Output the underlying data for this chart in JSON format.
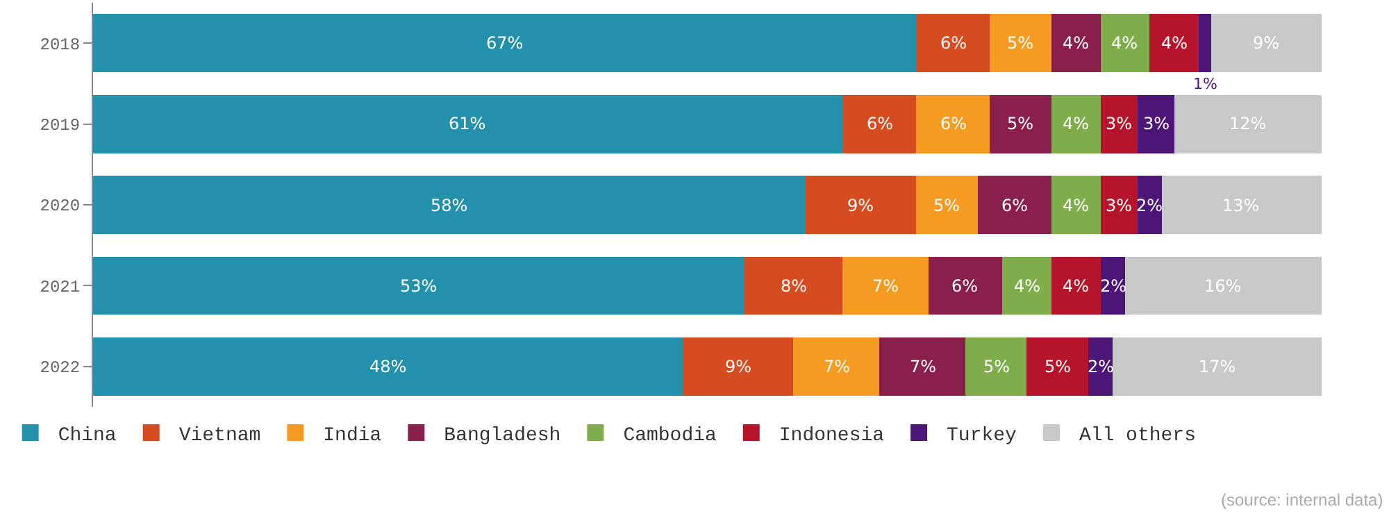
{
  "chart_data": {
    "type": "bar",
    "orientation": "horizontal",
    "stacked": true,
    "legend": "bottom",
    "categories": [
      "2018",
      "2019",
      "2020",
      "2021",
      "2022"
    ],
    "series": [
      {
        "name": "China",
        "color": "#2391ab",
        "values": [
          67,
          61,
          58,
          53,
          48
        ],
        "value_labels": [
          "67%",
          "61%",
          "58%",
          "53%",
          "48%"
        ]
      },
      {
        "name": "Vietnam",
        "color": "#d64c20",
        "values": [
          6,
          6,
          9,
          8,
          9
        ],
        "value_labels": [
          "6%",
          "6%",
          "9%",
          "8%",
          "9%"
        ]
      },
      {
        "name": "India",
        "color": "#f59b22",
        "values": [
          5,
          6,
          5,
          7,
          7
        ],
        "value_labels": [
          "5%",
          "6%",
          "5%",
          "7%",
          "7%"
        ]
      },
      {
        "name": "Bangladesh",
        "color": "#8a1f4c",
        "values": [
          4,
          5,
          6,
          6,
          7
        ],
        "value_labels": [
          "4%",
          "5%",
          "6%",
          "6%",
          "7%"
        ]
      },
      {
        "name": "Cambodia",
        "color": "#80ad4b",
        "values": [
          4,
          4,
          4,
          4,
          5
        ],
        "value_labels": [
          "4%",
          "4%",
          "4%",
          "4%",
          "5%"
        ]
      },
      {
        "name": "Indonesia",
        "color": "#b5142a",
        "values": [
          4,
          3,
          3,
          4,
          5
        ],
        "value_labels": [
          "4%",
          "3%",
          "3%",
          "4%",
          "5%"
        ]
      },
      {
        "name": "Turkey",
        "color": "#4b1677",
        "values": [
          1,
          3,
          2,
          2,
          2
        ],
        "value_labels": [
          "1%",
          "3%",
          "2%",
          "2%",
          "2%"
        ]
      },
      {
        "name": "All others",
        "color": "#c8c8c8",
        "values": [
          9,
          12,
          13,
          16,
          17
        ],
        "value_labels": [
          "9%",
          "12%",
          "13%",
          "16%",
          "17%"
        ]
      }
    ],
    "annotations": [
      "(source: internal data)"
    ]
  }
}
